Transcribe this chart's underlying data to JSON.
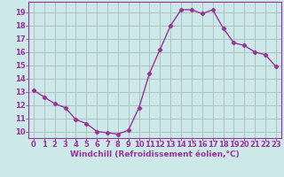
{
  "x": [
    0,
    1,
    2,
    3,
    4,
    5,
    6,
    7,
    8,
    9,
    10,
    11,
    12,
    13,
    14,
    15,
    16,
    17,
    18,
    19,
    20,
    21,
    22,
    23
  ],
  "y": [
    13.1,
    12.6,
    12.1,
    11.8,
    10.9,
    10.6,
    10.0,
    9.9,
    9.8,
    10.1,
    11.8,
    14.4,
    16.2,
    18.0,
    19.2,
    19.2,
    18.9,
    19.2,
    17.8,
    16.7,
    16.5,
    16.0,
    15.8,
    14.9
  ],
  "line_color": "#993399",
  "marker": "D",
  "markersize": 2.2,
  "linewidth": 1.0,
  "bg_color": "#cce8e8",
  "grid_color": "#aabbbb",
  "xlabel": "Windchill (Refroidissement éolien,°C)",
  "xlabel_color": "#993399",
  "xlabel_fontsize": 6.5,
  "tick_color": "#993399",
  "tick_fontsize": 6.0,
  "ylim": [
    9.5,
    19.8
  ],
  "xlim": [
    -0.5,
    23.5
  ],
  "yticks": [
    10,
    11,
    12,
    13,
    14,
    15,
    16,
    17,
    18,
    19
  ],
  "xticks": [
    0,
    1,
    2,
    3,
    4,
    5,
    6,
    7,
    8,
    9,
    10,
    11,
    12,
    13,
    14,
    15,
    16,
    17,
    18,
    19,
    20,
    21,
    22,
    23
  ]
}
